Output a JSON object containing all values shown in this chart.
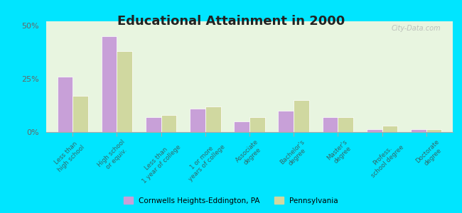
{
  "title": "Educational Attainment in 2000",
  "categories": [
    "Less than\nhigh school",
    "High school\nor equiv.",
    "Less than\n1 year of college",
    "1 or more\nyears of college",
    "Associate\ndegree",
    "Bachelor's\ndegree",
    "Master's\ndegree",
    "Profess.\nschool degree",
    "Doctorate\ndegree"
  ],
  "cornwells_values": [
    26,
    45,
    7,
    11,
    5,
    10,
    7,
    1.5,
    1.5
  ],
  "pennsylvania_values": [
    17,
    38,
    8,
    12,
    7,
    15,
    7,
    3,
    1.5
  ],
  "cornwells_color": "#c8a0d8",
  "pennsylvania_color": "#d0d8a0",
  "background_color": "#d8f0d0",
  "plot_bg_color": "#e8f5e0",
  "outer_bg_color": "#00e5ff",
  "ylim": [
    0,
    52
  ],
  "yticks": [
    0,
    25,
    50
  ],
  "ytick_labels": [
    "0%",
    "25%",
    "50%"
  ],
  "legend_label1": "Cornwells Heights-Eddington, PA",
  "legend_label2": "Pennsylvania",
  "watermark": "City-Data.com"
}
